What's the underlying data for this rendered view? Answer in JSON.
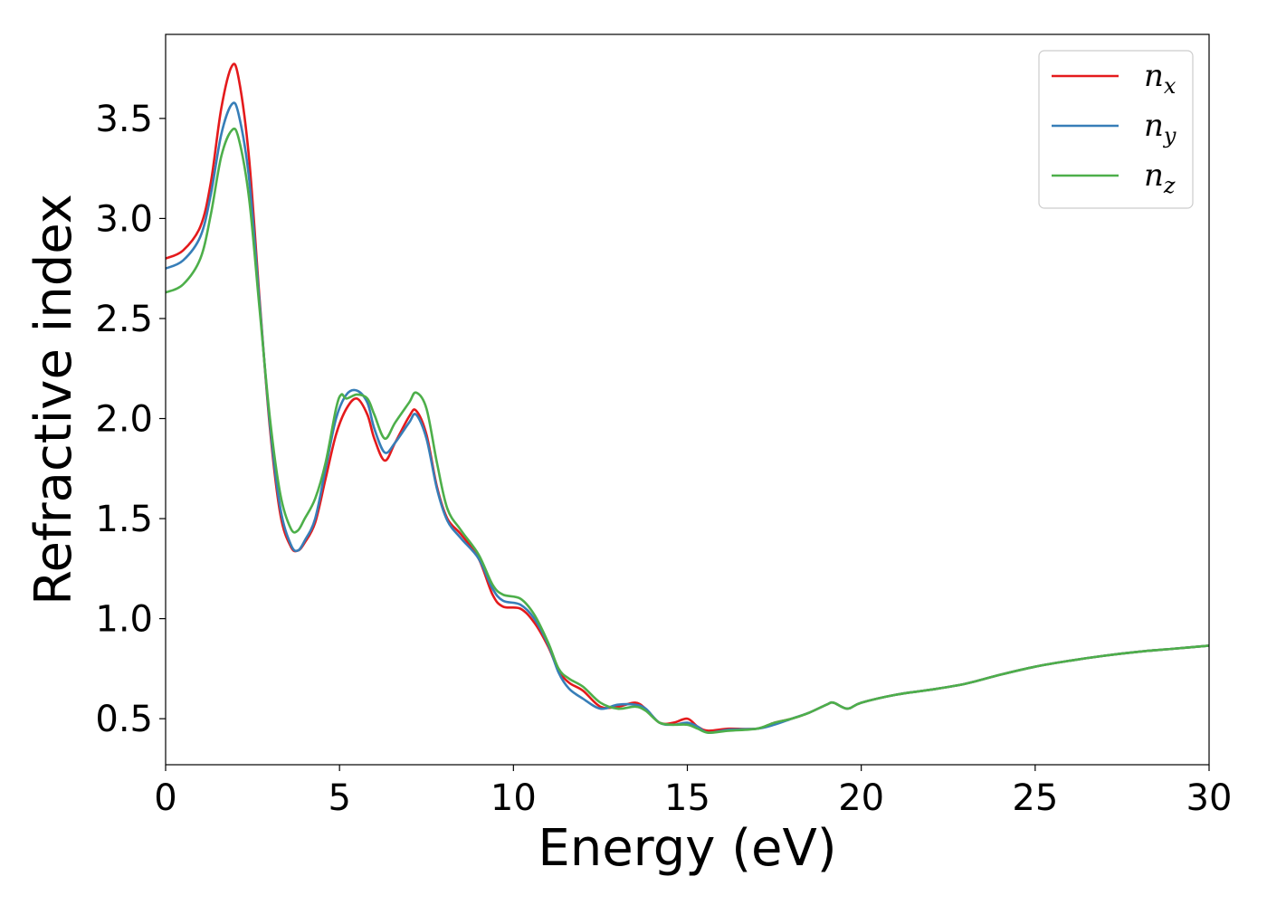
{
  "chart_data": {
    "type": "line",
    "xlabel": "Energy (eV)",
    "ylabel": "Refractive index",
    "xlim": [
      0,
      30
    ],
    "ylim": [
      0.27,
      3.92
    ],
    "xticks": [
      0,
      5,
      10,
      15,
      20,
      25,
      30
    ],
    "xtick_labels": [
      "0",
      "5",
      "10",
      "15",
      "20",
      "25",
      "30"
    ],
    "yticks": [
      0.5,
      1.0,
      1.5,
      2.0,
      2.5,
      3.0,
      3.5
    ],
    "ytick_labels": [
      "0.5",
      "1.0",
      "1.5",
      "2.0",
      "2.5",
      "3.0",
      "3.5"
    ],
    "grid": false,
    "legend_position": "top-right",
    "series": [
      {
        "name": "n_x",
        "label_main": "n",
        "label_sub": "x",
        "color": "#e41a1c",
        "points": [
          [
            0,
            2.8
          ],
          [
            0.5,
            2.84
          ],
          [
            1.0,
            2.96
          ],
          [
            1.3,
            3.18
          ],
          [
            1.6,
            3.55
          ],
          [
            1.9,
            3.76
          ],
          [
            2.1,
            3.7
          ],
          [
            2.4,
            3.3
          ],
          [
            2.7,
            2.6
          ],
          [
            3.0,
            1.95
          ],
          [
            3.3,
            1.52
          ],
          [
            3.6,
            1.36
          ],
          [
            3.8,
            1.34
          ],
          [
            4.0,
            1.38
          ],
          [
            4.3,
            1.48
          ],
          [
            4.6,
            1.7
          ],
          [
            4.9,
            1.92
          ],
          [
            5.2,
            2.05
          ],
          [
            5.5,
            2.1
          ],
          [
            5.8,
            2.02
          ],
          [
            6.0,
            1.9
          ],
          [
            6.3,
            1.79
          ],
          [
            6.6,
            1.88
          ],
          [
            7.0,
            2.01
          ],
          [
            7.2,
            2.04
          ],
          [
            7.5,
            1.92
          ],
          [
            7.8,
            1.66
          ],
          [
            8.1,
            1.5
          ],
          [
            8.5,
            1.42
          ],
          [
            9.0,
            1.3
          ],
          [
            9.4,
            1.12
          ],
          [
            9.7,
            1.06
          ],
          [
            10.2,
            1.05
          ],
          [
            10.6,
            0.98
          ],
          [
            11.0,
            0.86
          ],
          [
            11.3,
            0.74
          ],
          [
            11.6,
            0.68
          ],
          [
            12.0,
            0.64
          ],
          [
            12.5,
            0.56
          ],
          [
            13.0,
            0.56
          ],
          [
            13.5,
            0.58
          ],
          [
            13.8,
            0.55
          ],
          [
            14.2,
            0.48
          ],
          [
            14.6,
            0.48
          ],
          [
            15.0,
            0.5
          ],
          [
            15.3,
            0.46
          ],
          [
            15.6,
            0.44
          ],
          [
            16.2,
            0.45
          ],
          [
            17.0,
            0.45
          ],
          [
            17.5,
            0.48
          ],
          [
            18.0,
            0.5
          ],
          [
            18.5,
            0.53
          ],
          [
            19.0,
            0.57
          ],
          [
            19.2,
            0.58
          ],
          [
            19.6,
            0.55
          ],
          [
            20.0,
            0.58
          ],
          [
            21.0,
            0.62
          ],
          [
            22.0,
            0.645
          ],
          [
            23.0,
            0.675
          ],
          [
            24.0,
            0.72
          ],
          [
            25.0,
            0.76
          ],
          [
            26.0,
            0.79
          ],
          [
            27.0,
            0.815
          ],
          [
            28.0,
            0.835
          ],
          [
            29.0,
            0.85
          ],
          [
            30.0,
            0.865
          ]
        ]
      },
      {
        "name": "n_y",
        "label_main": "n",
        "label_sub": "y",
        "color": "#377eb8",
        "points": [
          [
            0,
            2.75
          ],
          [
            0.5,
            2.79
          ],
          [
            1.0,
            2.91
          ],
          [
            1.3,
            3.12
          ],
          [
            1.6,
            3.42
          ],
          [
            1.9,
            3.57
          ],
          [
            2.1,
            3.52
          ],
          [
            2.4,
            3.2
          ],
          [
            2.7,
            2.58
          ],
          [
            3.0,
            1.97
          ],
          [
            3.3,
            1.55
          ],
          [
            3.6,
            1.37
          ],
          [
            3.8,
            1.34
          ],
          [
            4.0,
            1.39
          ],
          [
            4.3,
            1.5
          ],
          [
            4.6,
            1.75
          ],
          [
            4.9,
            2.0
          ],
          [
            5.2,
            2.12
          ],
          [
            5.5,
            2.14
          ],
          [
            5.8,
            2.08
          ],
          [
            6.0,
            1.95
          ],
          [
            6.3,
            1.83
          ],
          [
            6.6,
            1.88
          ],
          [
            7.0,
            1.98
          ],
          [
            7.2,
            2.02
          ],
          [
            7.5,
            1.9
          ],
          [
            7.8,
            1.65
          ],
          [
            8.1,
            1.49
          ],
          [
            8.5,
            1.4
          ],
          [
            9.0,
            1.3
          ],
          [
            9.4,
            1.15
          ],
          [
            9.7,
            1.09
          ],
          [
            10.2,
            1.07
          ],
          [
            10.6,
            1.0
          ],
          [
            11.0,
            0.87
          ],
          [
            11.3,
            0.73
          ],
          [
            11.6,
            0.65
          ],
          [
            12.0,
            0.6
          ],
          [
            12.5,
            0.55
          ],
          [
            13.0,
            0.57
          ],
          [
            13.5,
            0.57
          ],
          [
            13.8,
            0.55
          ],
          [
            14.2,
            0.48
          ],
          [
            14.6,
            0.47
          ],
          [
            15.0,
            0.48
          ],
          [
            15.3,
            0.46
          ],
          [
            15.6,
            0.43
          ],
          [
            16.2,
            0.445
          ],
          [
            17.0,
            0.45
          ],
          [
            17.5,
            0.47
          ],
          [
            18.0,
            0.5
          ],
          [
            18.5,
            0.53
          ],
          [
            19.0,
            0.57
          ],
          [
            19.2,
            0.58
          ],
          [
            19.6,
            0.55
          ],
          [
            20.0,
            0.58
          ],
          [
            21.0,
            0.62
          ],
          [
            22.0,
            0.645
          ],
          [
            23.0,
            0.675
          ],
          [
            24.0,
            0.72
          ],
          [
            25.0,
            0.76
          ],
          [
            26.0,
            0.79
          ],
          [
            27.0,
            0.815
          ],
          [
            28.0,
            0.835
          ],
          [
            29.0,
            0.85
          ],
          [
            30.0,
            0.865
          ]
        ]
      },
      {
        "name": "n_z",
        "label_main": "n",
        "label_sub": "z",
        "color": "#4daf4a",
        "points": [
          [
            0,
            2.63
          ],
          [
            0.5,
            2.67
          ],
          [
            1.0,
            2.8
          ],
          [
            1.3,
            3.02
          ],
          [
            1.6,
            3.31
          ],
          [
            1.9,
            3.44
          ],
          [
            2.1,
            3.4
          ],
          [
            2.4,
            3.1
          ],
          [
            2.7,
            2.55
          ],
          [
            3.0,
            2.0
          ],
          [
            3.3,
            1.62
          ],
          [
            3.6,
            1.45
          ],
          [
            3.8,
            1.44
          ],
          [
            4.0,
            1.5
          ],
          [
            4.3,
            1.6
          ],
          [
            4.6,
            1.78
          ],
          [
            4.9,
            2.05
          ],
          [
            5.05,
            2.12
          ],
          [
            5.2,
            2.1
          ],
          [
            5.5,
            2.12
          ],
          [
            5.8,
            2.1
          ],
          [
            6.0,
            2.02
          ],
          [
            6.3,
            1.9
          ],
          [
            6.6,
            1.98
          ],
          [
            7.0,
            2.08
          ],
          [
            7.2,
            2.13
          ],
          [
            7.5,
            2.05
          ],
          [
            7.8,
            1.78
          ],
          [
            8.1,
            1.55
          ],
          [
            8.5,
            1.44
          ],
          [
            9.0,
            1.32
          ],
          [
            9.4,
            1.17
          ],
          [
            9.7,
            1.12
          ],
          [
            10.2,
            1.1
          ],
          [
            10.6,
            1.02
          ],
          [
            11.0,
            0.88
          ],
          [
            11.3,
            0.75
          ],
          [
            11.6,
            0.7
          ],
          [
            12.0,
            0.66
          ],
          [
            12.5,
            0.58
          ],
          [
            13.0,
            0.55
          ],
          [
            13.5,
            0.56
          ],
          [
            13.8,
            0.54
          ],
          [
            14.2,
            0.48
          ],
          [
            14.6,
            0.47
          ],
          [
            15.0,
            0.47
          ],
          [
            15.3,
            0.45
          ],
          [
            15.6,
            0.43
          ],
          [
            16.2,
            0.44
          ],
          [
            17.0,
            0.45
          ],
          [
            17.5,
            0.48
          ],
          [
            18.0,
            0.5
          ],
          [
            18.5,
            0.53
          ],
          [
            19.0,
            0.57
          ],
          [
            19.2,
            0.58
          ],
          [
            19.6,
            0.55
          ],
          [
            20.0,
            0.58
          ],
          [
            21.0,
            0.62
          ],
          [
            22.0,
            0.645
          ],
          [
            23.0,
            0.675
          ],
          [
            24.0,
            0.72
          ],
          [
            25.0,
            0.76
          ],
          [
            26.0,
            0.79
          ],
          [
            27.0,
            0.815
          ],
          [
            28.0,
            0.835
          ],
          [
            29.0,
            0.85
          ],
          [
            30.0,
            0.865
          ]
        ]
      }
    ]
  }
}
